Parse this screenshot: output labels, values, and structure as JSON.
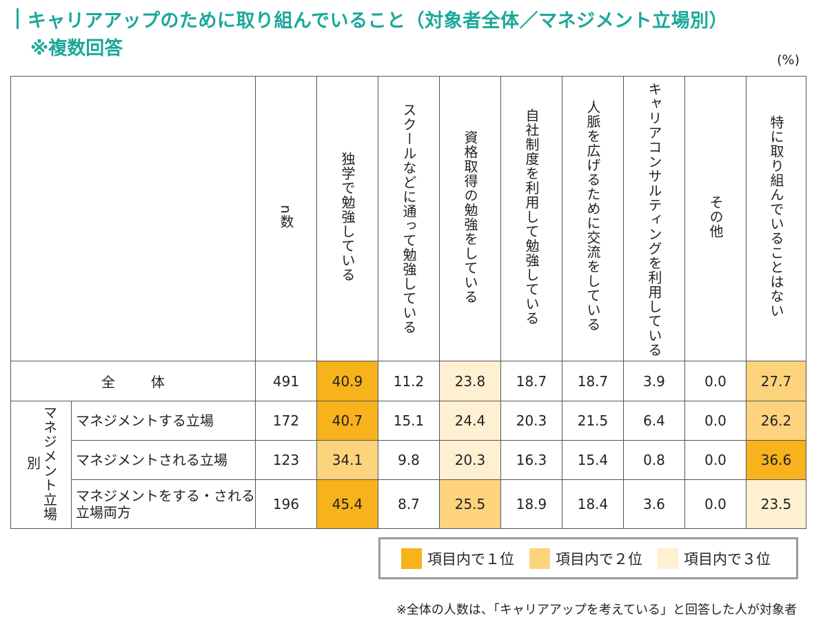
{
  "title_line1": "キャリアアップのために取り組んでいること（対象者全体／マネジメント立場別）",
  "title_line2": "※複数回答",
  "unit": "(%)",
  "chart_data": {
    "type": "table",
    "columns": [
      "n数",
      "独学で勉強している",
      "スクールなどに通って勉強している",
      "資格取得の勉強をしている",
      "自社制度を利用して勉強している",
      "人脈を広げるために交流をしている",
      "キャリアコンサルティングを利用している",
      "その他",
      "特に取り組んでいることはない"
    ],
    "group_label": "マネジメント立場別",
    "rows": [
      {
        "label": "全体",
        "n": "491",
        "values": [
          "40.9",
          "11.2",
          "23.8",
          "18.7",
          "18.7",
          "3.9",
          "0.0",
          "27.7"
        ],
        "ranks": [
          1,
          0,
          3,
          0,
          0,
          0,
          0,
          2
        ]
      },
      {
        "label": "マネジメントする立場",
        "n": "172",
        "values": [
          "40.7",
          "15.1",
          "24.4",
          "20.3",
          "21.5",
          "6.4",
          "0.0",
          "26.2"
        ],
        "ranks": [
          1,
          0,
          3,
          0,
          0,
          0,
          0,
          2
        ]
      },
      {
        "label": "マネジメントされる立場",
        "n": "123",
        "values": [
          "34.1",
          "9.8",
          "20.3",
          "16.3",
          "15.4",
          "0.8",
          "0.0",
          "36.6"
        ],
        "ranks": [
          2,
          0,
          3,
          0,
          0,
          0,
          0,
          1
        ]
      },
      {
        "label": "マネジメントをする・される立場両方",
        "n": "196",
        "values": [
          "45.4",
          "8.7",
          "25.5",
          "18.9",
          "18.4",
          "3.6",
          "0.0",
          "23.5"
        ],
        "ranks": [
          1,
          0,
          2,
          0,
          0,
          0,
          0,
          3
        ]
      }
    ],
    "rank_colors": {
      "1": "#f7b21c",
      "2": "#fdd37e",
      "3": "#fff0d2"
    }
  },
  "legend": [
    {
      "label": "項目内で１位",
      "color": "#f7b21c"
    },
    {
      "label": "項目内で２位",
      "color": "#fdd37e"
    },
    {
      "label": "項目内で３位",
      "color": "#fff0d2"
    }
  ],
  "footnote": "※全体の人数は、「キャリアアップを考えている」と回答した人が対象者"
}
